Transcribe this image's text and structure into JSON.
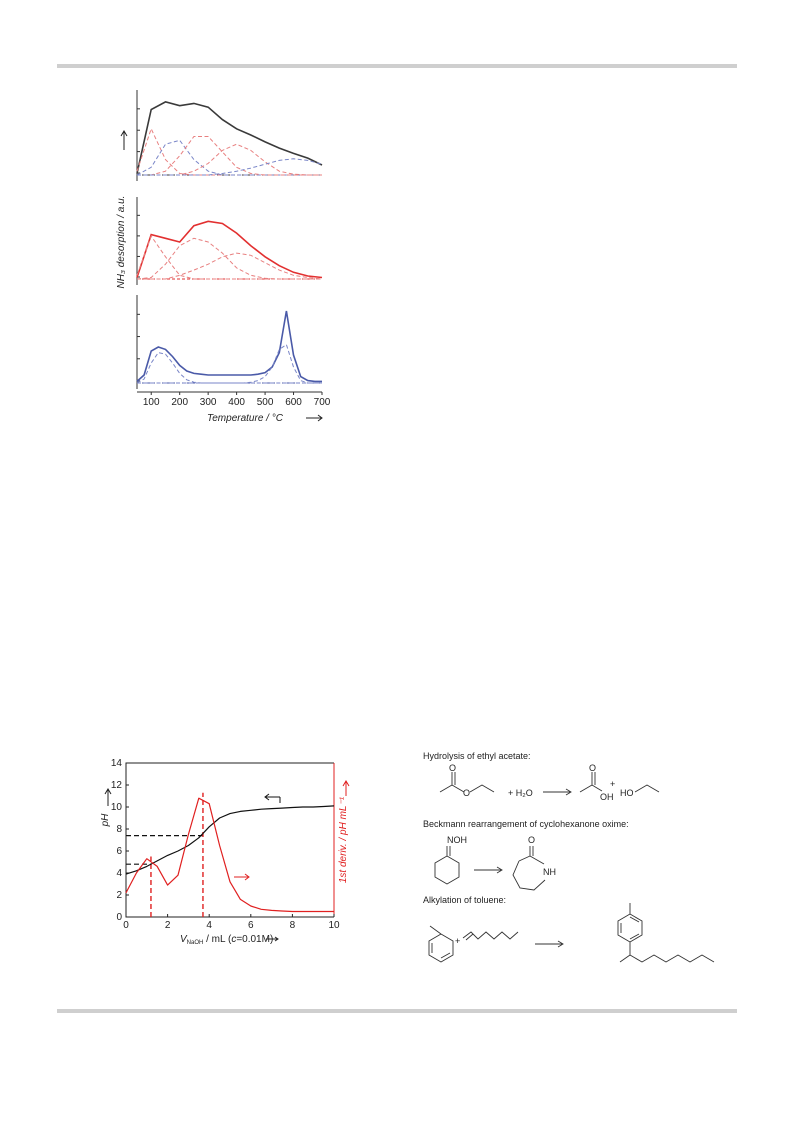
{
  "chart_data": [
    {
      "type": "line",
      "xlabel": "Temperature / °C",
      "ylabel": "NH₃ desorption / a.u.",
      "xlim": [
        50,
        700
      ],
      "xticks": [
        100,
        200,
        300,
        400,
        500,
        600,
        700
      ],
      "panels": [
        {
          "x": [
            50,
            100,
            150,
            200,
            250,
            300,
            350,
            400,
            450,
            500,
            550,
            600,
            650,
            700
          ],
          "ylim": [
            0,
            1
          ],
          "series": [
            {
              "color": "#3a3a3a",
              "style": "solid",
              "values": [
                0.02,
                0.85,
                0.95,
                0.9,
                0.93,
                0.88,
                0.72,
                0.6,
                0.52,
                0.43,
                0.35,
                0.28,
                0.22,
                0.13
              ]
            },
            {
              "color": "#e88080",
              "style": "dashed",
              "values": [
                0.05,
                0.6,
                0.2,
                0.02,
                0,
                0,
                0,
                0,
                0,
                0,
                0,
                0,
                0,
                0
              ]
            },
            {
              "color": "#7a86c8",
              "style": "dashed",
              "values": [
                0,
                0.1,
                0.4,
                0.45,
                0.2,
                0.05,
                0,
                0,
                0,
                0,
                0,
                0,
                0,
                0
              ]
            },
            {
              "color": "#e88080",
              "style": "dashed",
              "values": [
                0,
                0,
                0.05,
                0.25,
                0.5,
                0.5,
                0.3,
                0.1,
                0.02,
                0,
                0,
                0,
                0,
                0
              ]
            },
            {
              "color": "#e88080",
              "style": "dashed",
              "values": [
                0,
                0,
                0,
                0,
                0.05,
                0.15,
                0.32,
                0.4,
                0.32,
                0.17,
                0.05,
                0.01,
                0,
                0
              ]
            },
            {
              "color": "#7a86c8",
              "style": "dashed",
              "values": [
                0,
                0,
                0,
                0,
                0,
                0,
                0.02,
                0.05,
                0.09,
                0.14,
                0.19,
                0.21,
                0.19,
                0.14
              ]
            }
          ]
        },
        {
          "x": [
            50,
            100,
            150,
            200,
            250,
            300,
            350,
            400,
            450,
            500,
            550,
            600,
            650,
            700
          ],
          "ylim": [
            0,
            1
          ],
          "series": [
            {
              "color": "#e23030",
              "style": "solid",
              "values": [
                0.02,
                0.6,
                0.55,
                0.5,
                0.72,
                0.78,
                0.75,
                0.62,
                0.45,
                0.3,
                0.18,
                0.09,
                0.04,
                0.02
              ]
            },
            {
              "color": "#e88080",
              "style": "dashed",
              "values": [
                0.05,
                0.58,
                0.3,
                0.05,
                0,
                0,
                0,
                0,
                0,
                0,
                0,
                0,
                0,
                0
              ]
            },
            {
              "color": "#e88080",
              "style": "dashed",
              "values": [
                0,
                0.02,
                0.2,
                0.45,
                0.55,
                0.5,
                0.35,
                0.15,
                0.05,
                0.01,
                0,
                0,
                0,
                0
              ]
            },
            {
              "color": "#e88080",
              "style": "dashed",
              "values": [
                0,
                0,
                0,
                0.05,
                0.12,
                0.2,
                0.3,
                0.35,
                0.32,
                0.22,
                0.12,
                0.05,
                0.02,
                0
              ]
            }
          ]
        },
        {
          "x": [
            50,
            75,
            100,
            125,
            150,
            175,
            200,
            225,
            250,
            275,
            300,
            325,
            350,
            375,
            400,
            425,
            450,
            475,
            500,
            525,
            550,
            575,
            600,
            625,
            650,
            675,
            700
          ],
          "ylim": [
            0,
            1
          ],
          "series": [
            {
              "color": "#4a5aa8",
              "style": "solid",
              "values": [
                0.02,
                0.1,
                0.4,
                0.45,
                0.42,
                0.33,
                0.22,
                0.15,
                0.12,
                0.11,
                0.1,
                0.1,
                0.1,
                0.1,
                0.1,
                0.1,
                0.1,
                0.11,
                0.13,
                0.2,
                0.38,
                0.9,
                0.35,
                0.08,
                0.03,
                0.02,
                0.02
              ]
            },
            {
              "color": "#7a86c8",
              "style": "dashed",
              "values": [
                0,
                0.05,
                0.25,
                0.38,
                0.36,
                0.25,
                0.12,
                0.04,
                0.01,
                0,
                0,
                0,
                0,
                0,
                0,
                0,
                0,
                0,
                0,
                0,
                0,
                0,
                0,
                0,
                0,
                0,
                0
              ]
            },
            {
              "color": "#7a86c8",
              "style": "dashed",
              "values": [
                0,
                0,
                0,
                0,
                0,
                0,
                0,
                0,
                0,
                0,
                0,
                0,
                0,
                0,
                0,
                0,
                0.01,
                0.03,
                0.08,
                0.2,
                0.42,
                0.48,
                0.2,
                0.03,
                0,
                0,
                0
              ]
            }
          ]
        }
      ]
    },
    {
      "type": "line",
      "ylabel": "pH",
      "y2label": "1st deriv. / pH mL⁻¹",
      "xlabel": {
        "symbol": "V",
        "sub": "NaOH",
        "unit": " / mL (",
        "conc": "c",
        "rest": "=0.01M)"
      },
      "xlim": [
        0,
        10
      ],
      "xticks": [
        0,
        2,
        4,
        6,
        8,
        10
      ],
      "ylim": [
        0,
        14
      ],
      "yticks": [
        0,
        2,
        4,
        6,
        8,
        10,
        12,
        14
      ],
      "y2lim": [
        0,
        14
      ],
      "x": [
        0,
        0.5,
        1,
        1.5,
        2,
        2.5,
        3,
        3.5,
        4,
        4.5,
        5,
        5.5,
        6,
        6.5,
        7,
        7.5,
        8,
        8.5,
        9,
        9.5,
        10
      ],
      "series": [
        {
          "color": "#111111",
          "values": [
            3.9,
            4.2,
            4.6,
            5.1,
            5.6,
            6.0,
            6.5,
            7.2,
            8.2,
            9.0,
            9.4,
            9.6,
            9.7,
            9.8,
            9.85,
            9.9,
            9.95,
            10.0,
            10.0,
            10.05,
            10.1
          ]
        },
        {
          "color": "#e02020",
          "axis": "y2",
          "values": [
            2.2,
            4.0,
            5.3,
            4.6,
            2.9,
            3.8,
            7.5,
            10.8,
            10.3,
            6.5,
            3.2,
            1.6,
            1.0,
            0.7,
            0.6,
            0.55,
            0.5,
            0.5,
            0.5,
            0.5,
            0.5
          ]
        }
      ],
      "guides": [
        {
          "x": 1.2,
          "pH": 4.8,
          "deriv": 5.5
        },
        {
          "x": 3.7,
          "pH": 7.4,
          "deriv": 11.3
        }
      ]
    }
  ],
  "scheme": [
    {
      "title": "Hydrolysis of ethyl acetate:",
      "labels": [
        "O",
        "O",
        "+ H₂O",
        "O",
        "OH",
        "+",
        "HO"
      ]
    },
    {
      "title": "Beckmann rearrangement of cyclohexanone oxime:",
      "labels": [
        "NOH",
        "O",
        "NH"
      ]
    },
    {
      "title": "Alkylation of toluene:",
      "labels": [
        "+"
      ]
    }
  ]
}
